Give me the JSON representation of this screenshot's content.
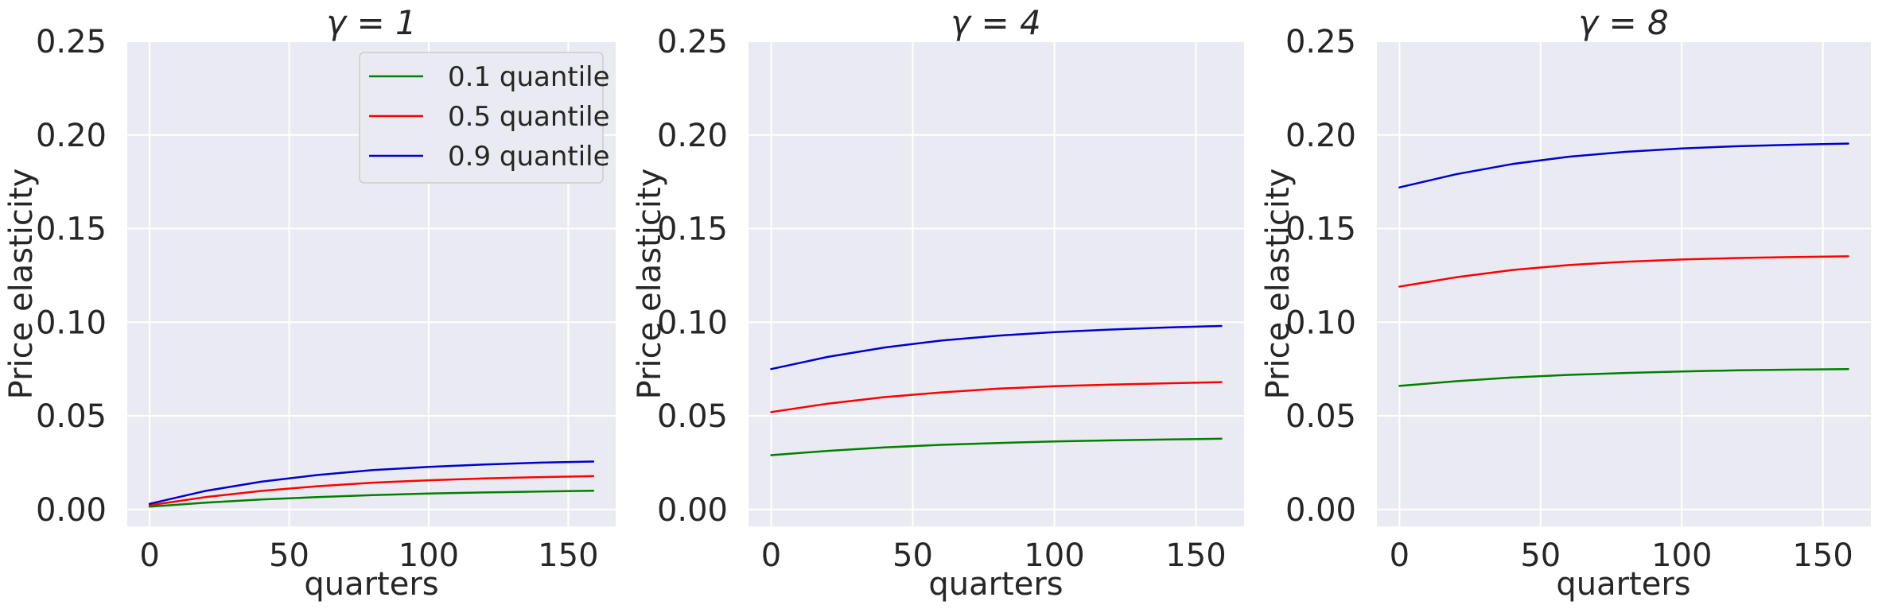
{
  "figure": {
    "legend_placement": "top-right of first panel",
    "series_colors": {
      "0.1 quantile": "#008000",
      "0.5 quantile": "#ff0000",
      "0.9 quantile": "#0000cc"
    }
  },
  "chart_data": [
    {
      "type": "line",
      "title": "γ = 1",
      "xlabel": "quarters",
      "ylabel": "Price elasticity",
      "xlim": [
        -8,
        167
      ],
      "ylim": [
        -0.009,
        0.25
      ],
      "xticks": [
        0,
        50,
        100,
        150
      ],
      "yticks": [
        0.0,
        0.05,
        0.1,
        0.15,
        0.2,
        0.25
      ],
      "xtick_labels": [
        "0",
        "50",
        "100",
        "150"
      ],
      "ytick_labels": [
        "0.00",
        "0.05",
        "0.10",
        "0.15",
        "0.20",
        "0.25"
      ],
      "grid": true,
      "legend": true,
      "x": [
        0,
        20,
        40,
        60,
        80,
        100,
        120,
        140,
        159
      ],
      "series": [
        {
          "name": "0.1 quantile",
          "color": "#008000",
          "values": [
            0.0015,
            0.0036,
            0.0053,
            0.0066,
            0.0077,
            0.0085,
            0.0091,
            0.0096,
            0.01
          ]
        },
        {
          "name": "0.5 quantile",
          "color": "#ff0000",
          "values": [
            0.0022,
            0.0066,
            0.0099,
            0.0124,
            0.0143,
            0.0156,
            0.0166,
            0.0173,
            0.0178
          ]
        },
        {
          "name": "0.9 quantile",
          "color": "#0000cc",
          "values": [
            0.003,
            0.0099,
            0.0148,
            0.0184,
            0.021,
            0.0227,
            0.024,
            0.025,
            0.0256
          ]
        }
      ]
    },
    {
      "type": "line",
      "title": "γ = 4",
      "xlabel": "quarters",
      "ylabel": "Price elasticity",
      "xlim": [
        -8,
        167
      ],
      "ylim": [
        -0.009,
        0.25
      ],
      "xticks": [
        0,
        50,
        100,
        150
      ],
      "yticks": [
        0.0,
        0.05,
        0.1,
        0.15,
        0.2,
        0.25
      ],
      "xtick_labels": [
        "0",
        "50",
        "100",
        "150"
      ],
      "ytick_labels": [
        "0.00",
        "0.05",
        "0.10",
        "0.15",
        "0.20",
        "0.25"
      ],
      "grid": true,
      "legend": false,
      "x": [
        0,
        20,
        40,
        60,
        80,
        100,
        120,
        140,
        159
      ],
      "series": [
        {
          "name": "0.1 quantile",
          "color": "#008000",
          "values": [
            0.029,
            0.0313,
            0.0331,
            0.0345,
            0.0355,
            0.0363,
            0.0369,
            0.0374,
            0.0378
          ]
        },
        {
          "name": "0.5 quantile",
          "color": "#ff0000",
          "values": [
            0.052,
            0.0565,
            0.06,
            0.0625,
            0.0645,
            0.0658,
            0.0667,
            0.0674,
            0.068
          ]
        },
        {
          "name": "0.9 quantile",
          "color": "#0000cc",
          "values": [
            0.075,
            0.0815,
            0.0865,
            0.0902,
            0.0928,
            0.0947,
            0.0961,
            0.0972,
            0.098
          ]
        }
      ]
    },
    {
      "type": "line",
      "title": "γ = 8",
      "xlabel": "quarters",
      "ylabel": "Price elasticity",
      "xlim": [
        -8,
        167
      ],
      "ylim": [
        -0.009,
        0.25
      ],
      "xticks": [
        0,
        50,
        100,
        150
      ],
      "yticks": [
        0.0,
        0.05,
        0.1,
        0.15,
        0.2,
        0.25
      ],
      "xtick_labels": [
        "0",
        "50",
        "100",
        "150"
      ],
      "ytick_labels": [
        "0.00",
        "0.05",
        "0.10",
        "0.15",
        "0.20",
        "0.25"
      ],
      "grid": true,
      "legend": false,
      "x": [
        0,
        20,
        40,
        60,
        80,
        100,
        120,
        140,
        159
      ],
      "series": [
        {
          "name": "0.1 quantile",
          "color": "#008000",
          "values": [
            0.066,
            0.0685,
            0.0705,
            0.0719,
            0.0729,
            0.0737,
            0.0743,
            0.0747,
            0.075
          ]
        },
        {
          "name": "0.5 quantile",
          "color": "#ff0000",
          "values": [
            0.119,
            0.124,
            0.1279,
            0.1305,
            0.1323,
            0.1335,
            0.1343,
            0.1348,
            0.1352
          ]
        },
        {
          "name": "0.9 quantile",
          "color": "#0000cc",
          "values": [
            0.172,
            0.179,
            0.1845,
            0.1884,
            0.191,
            0.1928,
            0.194,
            0.1948,
            0.1954
          ]
        }
      ]
    }
  ]
}
